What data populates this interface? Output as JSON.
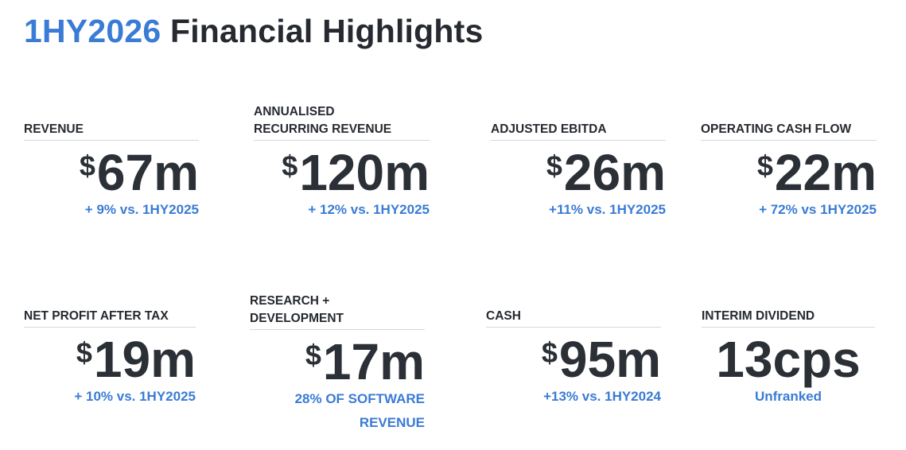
{
  "title": {
    "highlight": "1HY2026",
    "rest": "Financial Highlights"
  },
  "colors": {
    "accent": "#3a7bd5",
    "text": "#262a30"
  },
  "kpis": [
    {
      "label": "REVENUE",
      "currency": "$",
      "value": "67m",
      "note": "+ 9% vs. 1HY2025"
    },
    {
      "label_lines": [
        "ANNUALISED",
        "RECURRING REVENUE"
      ],
      "currency": "$",
      "value": "120m",
      "note": "+ 12% vs. 1HY2025"
    },
    {
      "label": "ADJUSTED EBITDA",
      "currency": "$",
      "value": "26m",
      "note": "+11% vs. 1HY2025"
    },
    {
      "label": "OPERATING CASH FLOW",
      "currency": "$",
      "value": "22m",
      "note": "+ 72% vs 1HY2025"
    },
    {
      "label": "NET PROFIT AFTER TAX",
      "currency": "$",
      "value": "19m",
      "note": "+ 10% vs. 1HY2025"
    },
    {
      "label_lines": [
        "RESEARCH +",
        "DEVELOPMENT"
      ],
      "currency": "$",
      "value": "17m",
      "note_lines": [
        "28% OF SOFTWARE",
        "REVENUE"
      ]
    },
    {
      "label": "CASH",
      "currency": "$",
      "value": "95m",
      "note": "+13% vs. 1HY2024"
    },
    {
      "label": "INTERIM DIVIDEND",
      "value": "13cps",
      "note": "Unfranked"
    }
  ]
}
